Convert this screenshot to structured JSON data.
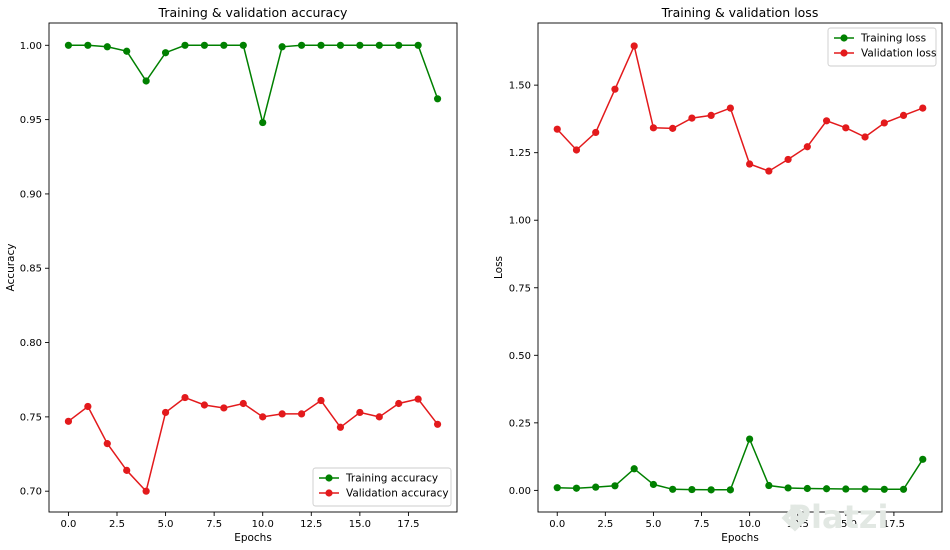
{
  "chart_data": [
    {
      "type": "line",
      "title": "Training & validation accuracy",
      "xlabel": "Epochs",
      "ylabel": "Accuracy",
      "xlim": [
        -1,
        20
      ],
      "ylim": [
        0.686,
        1.015
      ],
      "xticks": [
        0,
        2.5,
        5,
        7.5,
        10,
        12.5,
        15,
        17.5
      ],
      "xtick_labels": [
        "0.0",
        "2.5",
        "5.0",
        "7.5",
        "10.0",
        "12.5",
        "15.0",
        "17.5"
      ],
      "yticks": [
        0.7,
        0.75,
        0.8,
        0.85,
        0.9,
        0.95,
        1.0
      ],
      "ytick_labels": [
        "0.70",
        "0.75",
        "0.80",
        "0.85",
        "0.90",
        "0.95",
        "1.00"
      ],
      "legend_position": "lower-right",
      "x": [
        0,
        1,
        2,
        3,
        4,
        5,
        6,
        7,
        8,
        9,
        10,
        11,
        12,
        13,
        14,
        15,
        16,
        17,
        18,
        19
      ],
      "series": [
        {
          "name": "Training accuracy",
          "color": "#008000",
          "values": [
            1.0,
            1.0,
            0.999,
            0.996,
            0.976,
            0.995,
            1.0,
            1.0,
            1.0,
            1.0,
            0.948,
            0.999,
            1.0,
            1.0,
            1.0,
            1.0,
            1.0,
            1.0,
            1.0,
            0.964
          ]
        },
        {
          "name": "Validation accuracy",
          "color": "#e31a1c",
          "values": [
            0.747,
            0.757,
            0.732,
            0.714,
            0.7,
            0.753,
            0.763,
            0.758,
            0.756,
            0.759,
            0.75,
            0.752,
            0.752,
            0.761,
            0.743,
            0.753,
            0.75,
            0.759,
            0.762,
            0.745
          ]
        }
      ]
    },
    {
      "type": "line",
      "title": "Training & validation loss",
      "xlabel": "Epochs",
      "ylabel": "Loss",
      "xlim": [
        -1,
        20
      ],
      "ylim": [
        -0.08,
        1.73
      ],
      "xticks": [
        0,
        2.5,
        5,
        7.5,
        10,
        12.5,
        15,
        17.5
      ],
      "xtick_labels": [
        "0.0",
        "2.5",
        "5.0",
        "7.5",
        "10.0",
        "12.5",
        "15.0",
        "17.5"
      ],
      "yticks": [
        0.0,
        0.25,
        0.5,
        0.75,
        1.0,
        1.25,
        1.5
      ],
      "ytick_labels": [
        "0.00",
        "0.25",
        "0.50",
        "0.75",
        "1.00",
        "1.25",
        "1.50"
      ],
      "legend_position": "upper-right",
      "x": [
        0,
        1,
        2,
        3,
        4,
        5,
        6,
        7,
        8,
        9,
        10,
        11,
        12,
        13,
        14,
        15,
        16,
        17,
        18,
        19
      ],
      "series": [
        {
          "name": "Training loss",
          "color": "#008000",
          "values": [
            0.01,
            0.008,
            0.012,
            0.017,
            0.08,
            0.022,
            0.004,
            0.003,
            0.002,
            0.002,
            0.19,
            0.018,
            0.009,
            0.007,
            0.006,
            0.005,
            0.005,
            0.004,
            0.004,
            0.115
          ]
        },
        {
          "name": "Validation loss",
          "color": "#e31a1c",
          "values": [
            1.337,
            1.26,
            1.325,
            1.485,
            1.645,
            1.342,
            1.34,
            1.378,
            1.388,
            1.415,
            1.208,
            1.182,
            1.225,
            1.272,
            1.368,
            1.342,
            1.308,
            1.36,
            1.388,
            1.415
          ]
        }
      ]
    }
  ],
  "watermark": "Platzi"
}
